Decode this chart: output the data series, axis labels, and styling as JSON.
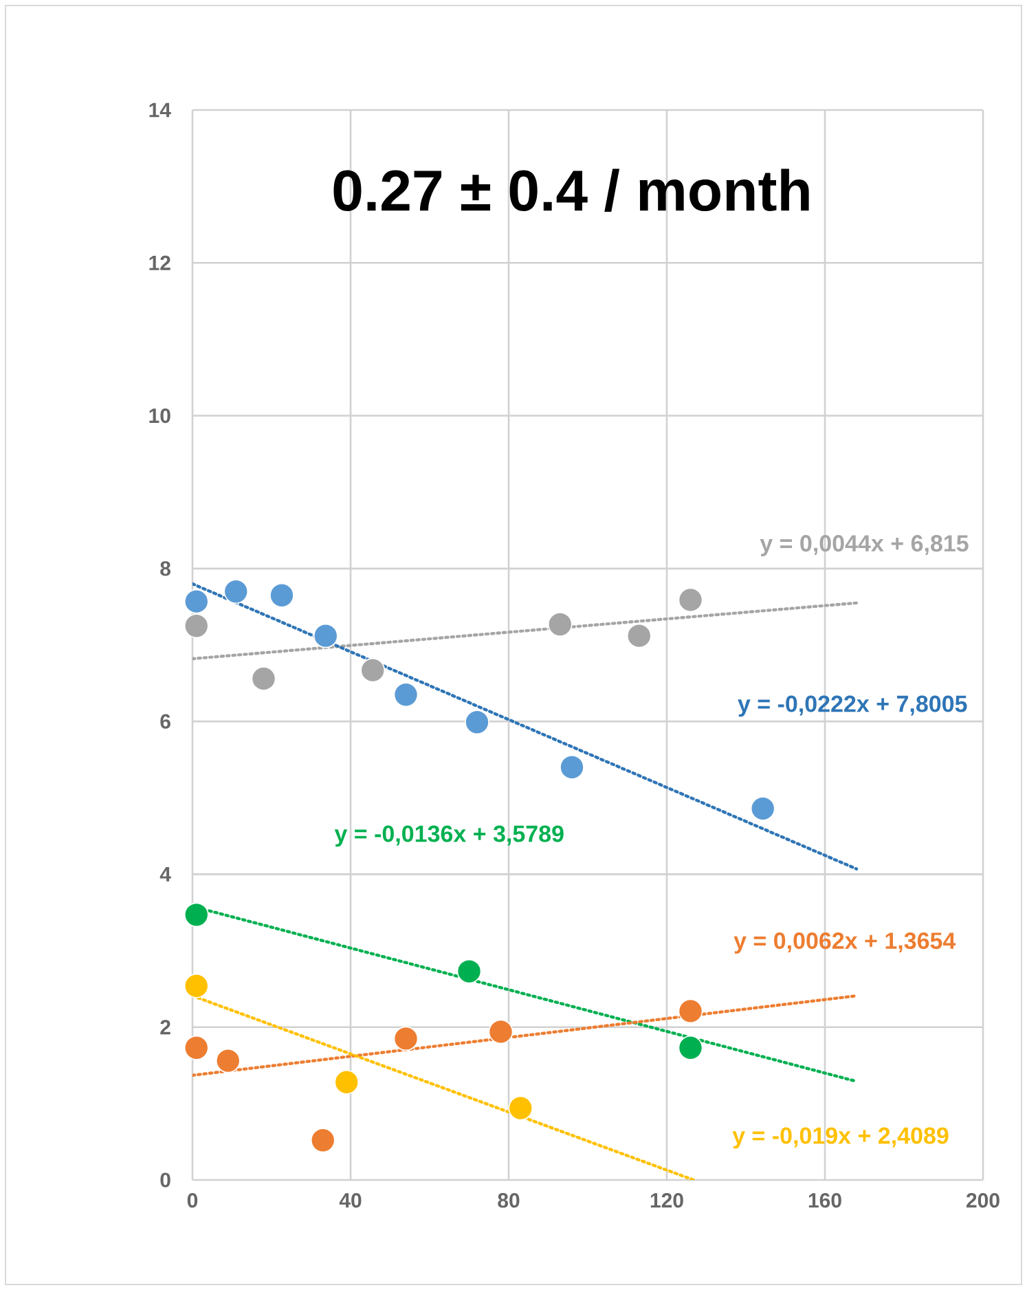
{
  "chart_data": {
    "type": "scatter",
    "title": "0.27 ± 0.4 / month",
    "xlim": [
      0,
      200
    ],
    "xticks": [
      0,
      40,
      80,
      120,
      160,
      200
    ],
    "ylim": [
      0,
      14
    ],
    "yticks": [
      0,
      2,
      4,
      6,
      8,
      10,
      12,
      14
    ],
    "grid": true,
    "series": [
      {
        "color": "#5b9bd5",
        "marker": "circle",
        "x": [
          1,
          11,
          22.6,
          33.7,
          54,
          72,
          96,
          144.3
        ],
        "values": [
          7.57,
          7.7,
          7.65,
          7.12,
          6.35,
          5.99,
          5.4,
          4.86
        ]
      },
      {
        "color": "#a5a5a5",
        "marker": "circle",
        "x": [
          1,
          18,
          45.6,
          93,
          113,
          126
        ],
        "values": [
          7.25,
          6.56,
          6.67,
          7.27,
          7.12,
          7.59
        ]
      },
      {
        "color": "#00b050",
        "marker": "circle",
        "x": [
          1,
          70,
          126
        ],
        "values": [
          3.47,
          2.73,
          1.73
        ]
      },
      {
        "color": "#ffc000",
        "marker": "circle",
        "x": [
          1,
          39,
          83
        ],
        "values": [
          2.54,
          1.28,
          0.94
        ]
      },
      {
        "color": "#ed7d31",
        "marker": "circle",
        "x": [
          1,
          9,
          33,
          54,
          78,
          126
        ],
        "values": [
          1.73,
          1.56,
          0.52,
          1.85,
          1.94,
          2.21
        ]
      },
      {
        "type": "line",
        "line_style": "dotted",
        "name": "y = 0,0044x + 6,815",
        "color": "#a5a5a5",
        "marker": "none",
        "x": [
          0,
          168
        ],
        "values": [
          6.82,
          7.55
        ]
      },
      {
        "type": "line",
        "line_style": "dotted",
        "name": "y = -0,0222x + 7,8005",
        "color": "#2e75b6",
        "marker": "none",
        "x": [
          0,
          168
        ],
        "values": [
          7.8,
          4.07
        ]
      },
      {
        "type": "line",
        "line_style": "dotted",
        "name": "y = -0,0136x + 3,5789",
        "color": "#00b050",
        "marker": "none",
        "x": [
          0,
          168
        ],
        "values": [
          3.58,
          1.29
        ]
      },
      {
        "type": "line",
        "line_style": "dotted",
        "name": "y = 0,0062x + 1,3654",
        "color": "#ed7d31",
        "marker": "none",
        "x": [
          0,
          168
        ],
        "values": [
          1.37,
          2.41
        ]
      },
      {
        "type": "line",
        "line_style": "dotted",
        "name": "y = -0,019x + 2,4089",
        "color": "#ffc000",
        "marker": "none",
        "x": [
          0,
          126.8
        ],
        "values": [
          2.41,
          0.0
        ]
      }
    ]
  }
}
